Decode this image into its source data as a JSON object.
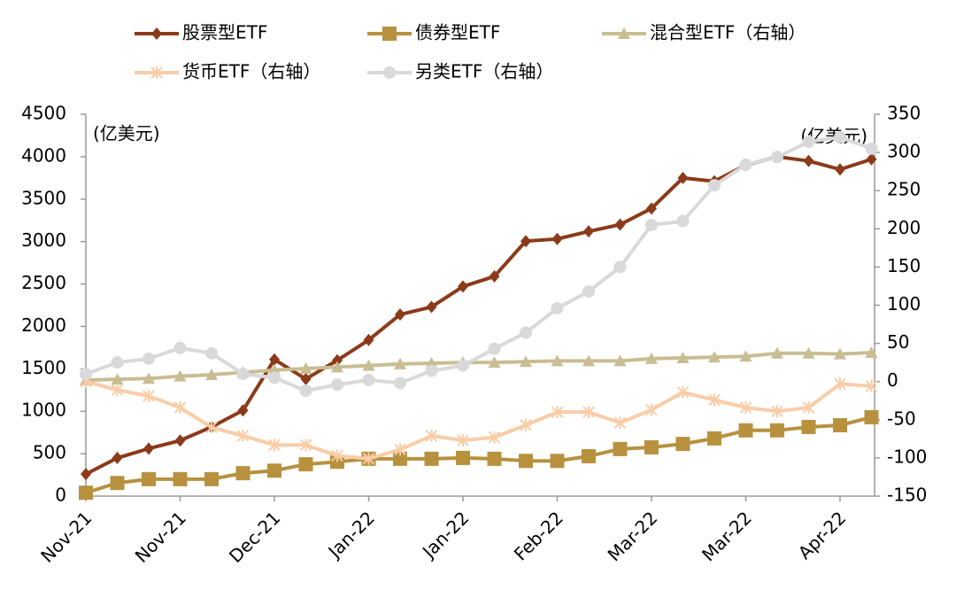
{
  "chart_data": {
    "type": "line",
    "categories": [
      "Nov-21",
      null,
      null,
      "Nov-21",
      null,
      null,
      "Dec-21",
      null,
      null,
      "Jan-22",
      null,
      null,
      "Jan-22",
      null,
      null,
      "Feb-22",
      null,
      null,
      "Mar-22",
      null,
      null,
      "Mar-22",
      null,
      null,
      "Apr-22",
      null
    ],
    "y_unit_label": "(亿美元)",
    "y2_unit_label": "(亿美元)",
    "ylim": [
      0,
      4500
    ],
    "yticks": [
      0,
      500,
      1000,
      1500,
      2000,
      2500,
      3000,
      3500,
      4000,
      4500
    ],
    "y2lim": [
      -150,
      350
    ],
    "y2ticks": [
      -150,
      -100,
      -50,
      0,
      50,
      100,
      150,
      200,
      250,
      300,
      350
    ],
    "series": [
      {
        "name": "股票型ETF",
        "color": "#8b3a1a",
        "marker": "diamond",
        "axis": "y",
        "values": [
          260,
          450,
          560,
          655,
          815,
          1010,
          1610,
          1380,
          1600,
          1840,
          2140,
          2230,
          2470,
          2590,
          3005,
          3030,
          3120,
          3200,
          3390,
          3750,
          3710,
          3900,
          4000,
          3950,
          3850,
          3970
        ]
      },
      {
        "name": "债券型ETF",
        "color": "#b8913f",
        "marker": "square",
        "axis": "y",
        "values": [
          40,
          155,
          200,
          200,
          200,
          270,
          300,
          375,
          405,
          440,
          440,
          440,
          450,
          440,
          415,
          415,
          470,
          555,
          575,
          615,
          680,
          775,
          775,
          815,
          835,
          930
        ]
      },
      {
        "name": "混合型ETF（右轴）",
        "color": "#c9bd93",
        "marker": "triangle",
        "axis": "y2",
        "values": [
          2,
          3,
          4,
          7,
          9,
          12,
          15,
          17,
          19,
          21,
          23,
          24,
          25,
          25,
          26,
          27,
          27,
          27,
          30,
          31,
          32,
          33,
          37,
          37,
          36,
          38
        ]
      },
      {
        "name": "货币ETF（右轴）",
        "color": "#f9cda8",
        "marker": "star",
        "axis": "y2",
        "values": [
          0,
          -11,
          -19,
          -34,
          -60,
          -71,
          -83,
          -83,
          -97,
          -101,
          -89,
          -71,
          -77,
          -73,
          -57,
          -40,
          -40,
          -54,
          -37,
          -14,
          -24,
          -34,
          -39,
          -34,
          -3,
          -6
        ]
      },
      {
        "name": "另类ETF（右轴）",
        "color": "#d9d9d9",
        "marker": "circle",
        "axis": "y2",
        "values": [
          10,
          25,
          30,
          44,
          37,
          10,
          5,
          -12,
          -4,
          2,
          -2,
          14,
          21,
          43,
          64,
          96,
          118,
          150,
          205,
          210,
          257,
          284,
          294,
          314,
          320,
          305
        ]
      }
    ]
  }
}
